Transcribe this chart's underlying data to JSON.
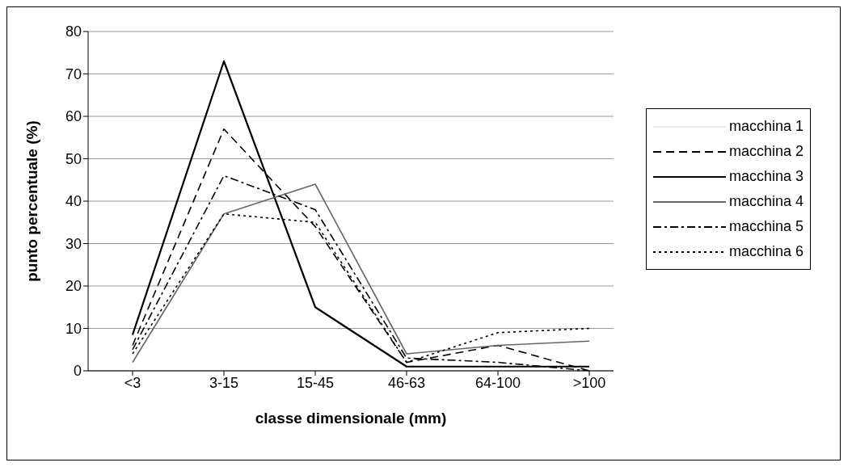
{
  "chart_data": {
    "type": "line",
    "xlabel": "classe dimensionale (mm)",
    "ylabel": "punto percentuale (%)",
    "categories": [
      "<3",
      "3-15",
      "15-45",
      "46-63",
      "64-100",
      ">100"
    ],
    "ylim": [
      0,
      80
    ],
    "yticks": [
      0,
      10,
      20,
      30,
      40,
      50,
      60,
      70,
      80
    ],
    "grid": "y",
    "legend": "right",
    "marker": "none",
    "series": [
      {
        "name": "macchina 1",
        "color": "#e8e8e8",
        "line_style": "solid",
        "values": [
          null,
          null,
          null,
          null,
          null,
          null
        ]
      },
      {
        "name": "macchina 2",
        "color": "#000000",
        "line_style": "dashed",
        "values": [
          6,
          57,
          34,
          2,
          6,
          0
        ]
      },
      {
        "name": "macchina 3",
        "color": "#000000",
        "line_style": "solid",
        "values": [
          8.5,
          73,
          15,
          1,
          1,
          1
        ]
      },
      {
        "name": "macchina 4",
        "color": "#666666",
        "line_style": "solid",
        "values": [
          2,
          37,
          44,
          4,
          6,
          7
        ]
      },
      {
        "name": "macchina 5",
        "color": "#000000",
        "line_style": "dashdot",
        "values": [
          5,
          46,
          38,
          3,
          2,
          0
        ]
      },
      {
        "name": "macchina 6",
        "color": "#000000",
        "line_style": "dotted",
        "values": [
          4,
          37,
          35,
          2,
          9,
          10
        ]
      }
    ]
  }
}
